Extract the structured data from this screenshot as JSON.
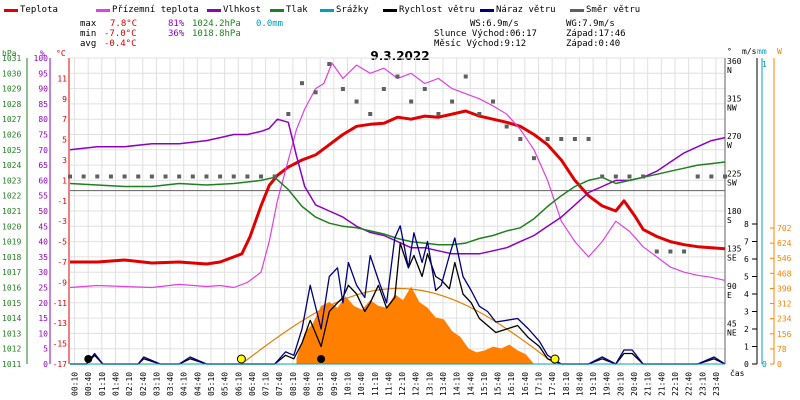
{
  "legend": [
    {
      "label": "Teplota",
      "color": "#e00000"
    },
    {
      "label": "Přízemní teplota",
      "color": "#e040e0"
    },
    {
      "label": "Vlhkost",
      "color": "#9000c0"
    },
    {
      "label": "Tlak",
      "color": "#208020"
    },
    {
      "label": "Srážky",
      "color": "#00a0c0"
    },
    {
      "label": "Rychlost větru",
      "color": "#000000"
    },
    {
      "label": "Náraz větru",
      "color": "#000080"
    },
    {
      "label": "Směr větru",
      "color": "#606060"
    }
  ],
  "stats": {
    "max_label": "max",
    "max_temp": "7.8°C",
    "max_hum": "81%",
    "max_press": "1024.2hPa",
    "max_rain": "0.0mm",
    "min_label": "min",
    "min_temp": "-7.0°C",
    "min_hum": "36%",
    "min_press": "1018.8hPa",
    "avg_label": "avg",
    "avg_temp": "-0.4°C"
  },
  "info": {
    "ws": "WS:6.9m/s",
    "wg": "WG:7.9m/s",
    "sun": "Slunce Východ:06:17",
    "sun_set": "Západ:17:46",
    "moon": "Měsíc  Východ:9:12",
    "moon_set": "Západ:0:40"
  },
  "colors": {
    "temperature": "#e00000",
    "ground_temp": "#e040e0",
    "humidity": "#9000c0",
    "pressure": "#208020",
    "rain": "#00a0c0",
    "wind": "#000000",
    "gust": "#000080",
    "wind_dir": "#606060",
    "solar": "#ff8000",
    "sun_curve": "#e08000"
  },
  "chart_data": {
    "type": "line",
    "title": "9.3.2022",
    "x_unit_label": "čas",
    "x_ticks": [
      "00:10",
      "00:40",
      "01:10",
      "01:40",
      "02:10",
      "02:40",
      "03:10",
      "03:40",
      "04:10",
      "04:40",
      "05:10",
      "05:40",
      "06:10",
      "06:40",
      "07:10",
      "07:40",
      "08:10",
      "08:40",
      "09:10",
      "09:40",
      "10:10",
      "10:40",
      "11:10",
      "11:40",
      "12:10",
      "12:40",
      "13:10",
      "13:40",
      "14:10",
      "14:40",
      "15:10",
      "15:40",
      "16:10",
      "16:40",
      "17:10",
      "17:40",
      "18:10",
      "18:40",
      "19:10",
      "19:40",
      "20:10",
      "20:40",
      "21:10",
      "21:40",
      "22:10",
      "22:40",
      "23:10",
      "23:40"
    ],
    "x_range": [
      0,
      24
    ],
    "axes": {
      "press": {
        "label": "hPa",
        "min": 1011,
        "max": 1031,
        "ticks": [
          1011,
          1012,
          1013,
          1014,
          1015,
          1016,
          1017,
          1018,
          1019,
          1020,
          1021,
          1022,
          1023,
          1024,
          1025,
          1026,
          1027,
          1028,
          1029,
          1030,
          1031
        ]
      },
      "hum": {
        "label": "%",
        "min": 0,
        "max": 100,
        "ticks": [
          0,
          5,
          10,
          15,
          20,
          25,
          30,
          35,
          40,
          45,
          50,
          55,
          60,
          65,
          70,
          75,
          80,
          85,
          90,
          95,
          100
        ]
      },
      "temp": {
        "label": "°C",
        "min": -17,
        "max": 13,
        "ticks": [
          -17,
          -15,
          -13,
          -11,
          -9,
          -7,
          -5,
          -3,
          -1,
          1,
          3,
          5,
          7,
          9,
          11
        ]
      },
      "dir": {
        "label": "°",
        "ticks": [
          {
            "v": 45,
            "d": "NE"
          },
          {
            "v": 90,
            "d": "E"
          },
          {
            "v": 135,
            "d": "SE"
          },
          {
            "v": 180,
            "d": "S"
          },
          {
            "v": 225,
            "d": "SW"
          },
          {
            "v": 270,
            "d": "W"
          },
          {
            "v": 315,
            "d": "NW"
          },
          {
            "v": 360,
            "d": "N"
          }
        ]
      },
      "wind": {
        "label": "m/s",
        "ticks": [
          0,
          1,
          2,
          3,
          4,
          5,
          6,
          7,
          8
        ]
      },
      "rain": {
        "label": "mm",
        "ticks": [
          0,
          1
        ]
      },
      "solar": {
        "label": "W",
        "ticks": [
          0,
          78,
          156,
          234,
          312,
          390,
          468,
          546,
          624,
          702
        ]
      }
    },
    "series": [
      {
        "name": "Teplota",
        "key": "temp",
        "color": "#e00000",
        "x": [
          0,
          1,
          2,
          3,
          4,
          5,
          5.5,
          6,
          6.3,
          6.6,
          7,
          7.3,
          7.6,
          8,
          8.5,
          9,
          9.5,
          10,
          10.5,
          11,
          11.5,
          12,
          12.5,
          13,
          13.5,
          14,
          14.5,
          15,
          15.5,
          16,
          16.5,
          17,
          17.5,
          18,
          18.5,
          19,
          19.5,
          20,
          20.3,
          20.7,
          21,
          21.5,
          22,
          22.5,
          23,
          23.5,
          24
        ],
        "y": [
          -7.0,
          -7.0,
          -6.8,
          -7.1,
          -7.0,
          -7.2,
          -7.0,
          -6.5,
          -6.2,
          -4.5,
          -1.5,
          0.5,
          1.5,
          2.3,
          3.0,
          3.5,
          4.5,
          5.5,
          6.3,
          6.5,
          6.6,
          7.2,
          7.0,
          7.3,
          7.2,
          7.5,
          7.8,
          7.3,
          7.0,
          6.7,
          6.3,
          5.5,
          4.5,
          3.0,
          1.0,
          -0.5,
          -1.5,
          -2.0,
          -1.0,
          -2.5,
          -3.8,
          -4.5,
          -5.0,
          -5.3,
          -5.5,
          -5.6,
          -5.7
        ]
      },
      {
        "name": "Přízemní teplota",
        "key": "temp",
        "color": "#e040e0",
        "x": [
          0,
          1,
          2,
          3,
          4,
          5,
          5.5,
          6,
          6.5,
          7,
          7.3,
          7.6,
          8,
          8.3,
          8.6,
          9,
          9.3,
          9.6,
          10,
          10.5,
          11,
          11.5,
          12,
          12.5,
          13,
          13.5,
          14,
          14.5,
          15,
          15.5,
          16,
          16.5,
          17,
          17.5,
          18,
          18.5,
          19,
          19.5,
          20,
          20.5,
          21,
          21.5,
          22,
          22.5,
          23,
          23.5,
          24
        ],
        "y": [
          -9.5,
          -9.3,
          -9.4,
          -9.5,
          -9.2,
          -9.4,
          -9.3,
          -9.5,
          -9.0,
          -8.0,
          -5.0,
          -1.0,
          3.0,
          6.0,
          8.0,
          10.0,
          10.5,
          12.5,
          11.0,
          12.3,
          11.5,
          12.0,
          11.0,
          11.5,
          10.5,
          11.0,
          10.0,
          9.5,
          9.0,
          8.3,
          7.5,
          6.0,
          4.0,
          1.0,
          -3.0,
          -5.0,
          -6.5,
          -5.0,
          -3.0,
          -4.0,
          -5.5,
          -6.5,
          -7.5,
          -8.0,
          -8.3,
          -8.5,
          -8.8
        ]
      },
      {
        "name": "Vlhkost",
        "key": "hum",
        "color": "#9000c0",
        "x": [
          0,
          1,
          2,
          3,
          4,
          5,
          5.5,
          6,
          6.5,
          7,
          7.3,
          7.6,
          8,
          8.3,
          8.6,
          9,
          9.5,
          10,
          10.5,
          11,
          11.5,
          12,
          12.5,
          13,
          13.5,
          14,
          14.5,
          15,
          15.5,
          16,
          16.5,
          17,
          17.5,
          18,
          18.5,
          19,
          19.5,
          20,
          20.5,
          21,
          21.5,
          22,
          22.5,
          23,
          23.5,
          24
        ],
        "y": [
          70,
          71,
          71,
          72,
          72,
          73,
          74,
          75,
          75,
          76,
          77,
          80,
          79,
          68,
          58,
          52,
          50,
          48,
          45,
          43,
          42,
          40,
          38,
          38,
          37,
          36,
          36,
          36,
          37,
          38,
          40,
          42,
          45,
          48,
          52,
          56,
          58,
          60,
          60,
          61,
          63,
          66,
          69,
          71,
          73,
          74
        ]
      },
      {
        "name": "Tlak",
        "key": "press",
        "color": "#208020",
        "x": [
          0,
          1,
          2,
          3,
          4,
          5,
          6,
          7,
          7.5,
          8,
          8.5,
          9,
          9.5,
          10,
          10.5,
          11,
          11.5,
          12,
          12.5,
          13,
          13.5,
          14,
          14.5,
          15,
          15.5,
          16,
          16.5,
          17,
          17.5,
          18,
          18.5,
          19,
          19.5,
          20,
          20.5,
          21,
          21.5,
          22,
          22.5,
          23,
          23.5,
          24
        ],
        "y": [
          1022.8,
          1022.7,
          1022.6,
          1022.6,
          1022.8,
          1022.7,
          1022.8,
          1023.0,
          1023.2,
          1022.4,
          1021.3,
          1020.6,
          1020.2,
          1020.0,
          1019.9,
          1019.7,
          1019.5,
          1019.2,
          1019.0,
          1018.9,
          1018.8,
          1018.8,
          1018.9,
          1019.2,
          1019.4,
          1019.7,
          1019.9,
          1020.5,
          1021.3,
          1022.0,
          1022.6,
          1023.0,
          1023.2,
          1022.8,
          1023.0,
          1023.2,
          1023.4,
          1023.6,
          1023.8,
          1024.0,
          1024.1,
          1024.2
        ]
      },
      {
        "name": "Rychlost větru",
        "key": "wind",
        "color": "#000000",
        "x": [
          0,
          0.6,
          0.9,
          1.2,
          1.6,
          2.5,
          2.7,
          3.3,
          4,
          4.4,
          5,
          6.5,
          7,
          7.5,
          7.9,
          8.2,
          8.5,
          8.8,
          9.2,
          9.5,
          9.8,
          10.0,
          10.2,
          10.5,
          10.8,
          11.0,
          11.3,
          11.6,
          11.9,
          12.1,
          12.4,
          12.6,
          12.9,
          13.1,
          13.4,
          13.6,
          13.9,
          14.1,
          14.4,
          14.7,
          15.0,
          15.3,
          15.6,
          16.0,
          16.4,
          16.8,
          17.2,
          17.5,
          18,
          19,
          19.5,
          20,
          20.3,
          20.6,
          21,
          22,
          23,
          23.6,
          24
        ],
        "y": [
          0,
          0,
          0.5,
          0,
          0,
          0,
          0.3,
          0,
          0,
          0.3,
          0,
          0,
          0,
          0,
          0.5,
          0.3,
          1.2,
          2.5,
          1.0,
          3.0,
          3.5,
          3.8,
          4.5,
          4.0,
          3.0,
          3.5,
          4.5,
          3.2,
          3.8,
          6.9,
          5.5,
          6.2,
          5.0,
          6.3,
          5.0,
          4.8,
          4.3,
          5.8,
          4.0,
          3.5,
          2.6,
          2.2,
          1.8,
          2.0,
          2.2,
          1.5,
          1.0,
          0.3,
          0,
          0,
          0.3,
          0,
          0.6,
          0.6,
          0,
          0,
          0,
          0.3,
          0
        ]
      },
      {
        "name": "Náraz větru",
        "key": "wind",
        "color": "#000080",
        "x": [
          0,
          0.6,
          0.9,
          1.2,
          1.6,
          2.5,
          2.7,
          3.3,
          4,
          4.4,
          5,
          6.5,
          7,
          7.5,
          7.9,
          8.2,
          8.5,
          8.8,
          9.2,
          9.5,
          9.8,
          10.0,
          10.2,
          10.5,
          10.8,
          11.0,
          11.3,
          11.6,
          11.9,
          12.1,
          12.4,
          12.6,
          12.9,
          13.1,
          13.4,
          13.6,
          13.9,
          14.1,
          14.4,
          14.7,
          15.0,
          15.3,
          15.6,
          16.0,
          16.4,
          16.8,
          17.2,
          17.5,
          18,
          19,
          19.5,
          20,
          20.3,
          20.6,
          21,
          22,
          23,
          23.6,
          24
        ],
        "y": [
          0,
          0,
          0.6,
          0,
          0,
          0,
          0.4,
          0,
          0,
          0.4,
          0,
          0,
          0,
          0,
          0.7,
          0.5,
          2.0,
          4.5,
          2.0,
          5.0,
          5.5,
          3.5,
          5.8,
          4.5,
          3.8,
          6.2,
          4.8,
          3.5,
          7.2,
          7.9,
          5.5,
          7.5,
          5.8,
          7.0,
          4.2,
          4.5,
          6.2,
          7.2,
          5.0,
          4.2,
          3.3,
          3.0,
          2.4,
          2.5,
          2.6,
          2.0,
          1.3,
          0.5,
          0,
          0,
          0.4,
          0,
          0.8,
          0.8,
          0,
          0,
          0,
          0.4,
          0
        ]
      },
      {
        "name": "Srážky",
        "key": "rain",
        "color": "#00a0c0",
        "x": [
          0,
          24
        ],
        "y": [
          0,
          0
        ]
      }
    ],
    "solar_radiation": {
      "x": [
        8.3,
        8.6,
        8.9,
        9.2,
        9.5,
        9.8,
        10.1,
        10.4,
        10.7,
        11.0,
        11.3,
        11.6,
        11.9,
        12.2,
        12.5,
        12.8,
        13.1,
        13.4,
        13.7,
        14.0,
        14.3,
        14.6,
        14.9,
        15.2,
        15.5,
        15.8,
        16.1,
        16.4,
        16.7,
        17.0
      ],
      "y": [
        30,
        160,
        210,
        300,
        320,
        290,
        350,
        300,
        280,
        330,
        300,
        290,
        360,
        330,
        400,
        320,
        290,
        240,
        230,
        170,
        140,
        80,
        60,
        70,
        90,
        80,
        100,
        70,
        50,
        0
      ]
    },
    "sun_curve": {
      "x": [
        6.28,
        12.0,
        17.77
      ],
      "y_peak": 390
    },
    "wind_direction": {
      "x": [
        0,
        0.5,
        1,
        1.5,
        2,
        2.5,
        3,
        3.5,
        4,
        4.5,
        5,
        5.5,
        6,
        6.5,
        7,
        7.5,
        8,
        8.5,
        9,
        9.5,
        10,
        10.5,
        11,
        11.5,
        12,
        12.5,
        13,
        13.5,
        14,
        14.5,
        15,
        15.5,
        16,
        16.5,
        17,
        17.5,
        18,
        18.5,
        19,
        19.5,
        20,
        20.5,
        21,
        21.5,
        22,
        22.5,
        23,
        23.5,
        24
      ],
      "y": [
        225,
        225,
        225,
        225,
        225,
        225,
        225,
        225,
        225,
        225,
        225,
        225,
        225,
        225,
        225,
        225,
        300,
        337,
        326,
        360,
        330,
        315,
        300,
        330,
        345,
        315,
        330,
        300,
        315,
        345,
        300,
        315,
        285,
        270,
        247,
        270,
        270,
        270,
        270,
        225,
        225,
        225,
        225,
        135,
        135,
        135,
        225,
        225,
        225
      ]
    }
  }
}
